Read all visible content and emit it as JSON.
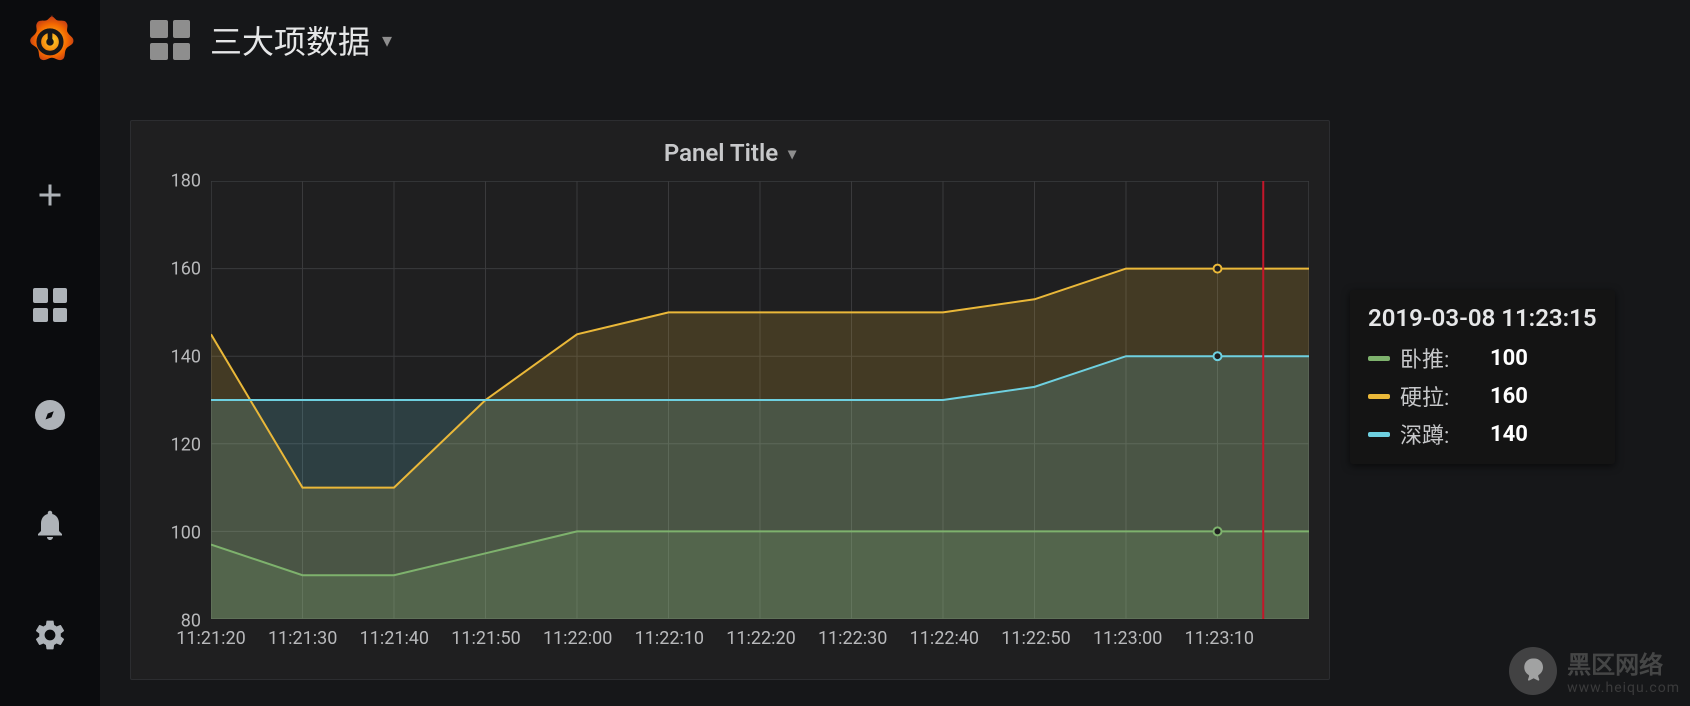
{
  "app": {
    "dashboard_title": "三大项数据"
  },
  "sidebar": {
    "items": [
      {
        "name": "create",
        "icon": "plus-icon"
      },
      {
        "name": "dashboards",
        "icon": "apps-icon"
      },
      {
        "name": "explore",
        "icon": "compass-icon"
      },
      {
        "name": "alerting",
        "icon": "bell-icon"
      },
      {
        "name": "configuration",
        "icon": "gear-icon"
      }
    ]
  },
  "panel": {
    "title": "Panel Title",
    "chart": {
      "type": "area",
      "background_color": "#1f1f20",
      "grid_color": "#3a3b3d",
      "axis_label_color": "#b8b9bb",
      "axis_label_fontsize": 18,
      "ylim": [
        80,
        180
      ],
      "yticks": [
        80,
        100,
        120,
        140,
        160,
        180
      ],
      "x_labels": [
        "11:21:20",
        "11:21:30",
        "11:21:40",
        "11:21:50",
        "11:22:00",
        "11:22:10",
        "11:22:20",
        "11:22:30",
        "11:22:40",
        "11:22:50",
        "11:23:00",
        "11:23:10"
      ],
      "fill_opacity": 0.18,
      "line_width": 2,
      "crosshair_color": "#c4162a",
      "crosshair_x_index": 11.5,
      "series": [
        {
          "name": "卧推",
          "color": "#7eb26d",
          "values": [
            97,
            90,
            90,
            95,
            100,
            100,
            100,
            100,
            100,
            100,
            100,
            100,
            100
          ]
        },
        {
          "name": "硬拉",
          "color": "#eab839",
          "values": [
            145,
            110,
            110,
            130,
            145,
            150,
            150,
            150,
            150,
            153,
            160,
            160,
            160
          ]
        },
        {
          "name": "深蹲",
          "color": "#6ed0e0",
          "values": [
            130,
            130,
            130,
            130,
            130,
            130,
            130,
            130,
            130,
            133,
            140,
            140,
            140
          ]
        }
      ]
    }
  },
  "tooltip": {
    "timestamp": "2019-03-08 11:23:15",
    "rows": [
      {
        "label": "卧推:",
        "value": "100",
        "color": "#7eb26d"
      },
      {
        "label": "硬拉:",
        "value": "160",
        "color": "#eab839"
      },
      {
        "label": "深蹲:",
        "value": "140",
        "color": "#6ed0e0"
      }
    ]
  },
  "watermark": {
    "title": "黑区网络",
    "subtitle": "www.heiqu.com"
  }
}
